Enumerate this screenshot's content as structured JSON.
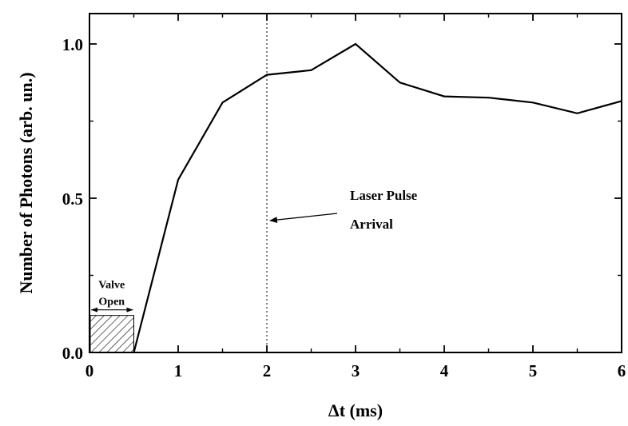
{
  "chart_data": {
    "type": "line",
    "title": "",
    "xlabel": "Δt (ms)",
    "ylabel": "Number of Photons (arb. un.)",
    "xlim": [
      0,
      6
    ],
    "ylim": [
      0,
      1.1
    ],
    "x_ticks": [
      "0",
      "1",
      "2",
      "3",
      "4",
      "5",
      "6"
    ],
    "y_ticks": [
      "0.0",
      "0.5",
      "1.0"
    ],
    "grid": false,
    "series": [
      {
        "x": [
          0.5,
          1.0,
          1.5,
          2.0,
          2.5,
          3.0,
          3.5,
          4.0,
          4.5,
          5.0,
          5.5,
          6.0
        ],
        "y": [
          0.0,
          0.56,
          0.81,
          0.9,
          0.915,
          1.0,
          0.875,
          0.83,
          0.826,
          0.81,
          0.775,
          0.815
        ]
      }
    ],
    "reference_line": {
      "x": 2,
      "style": "dotted"
    },
    "valve_region": {
      "x": [
        0,
        0.5
      ],
      "y": [
        0,
        0.12
      ]
    },
    "annotations": {
      "laser_line1": "Laser Pulse",
      "laser_line2": "Arrival",
      "valve_line1": "Valve",
      "valve_line2": "Open"
    }
  }
}
